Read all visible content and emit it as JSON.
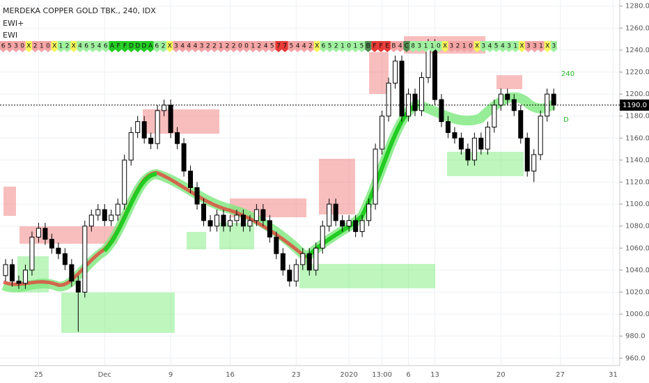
{
  "chart_data": {
    "type": "candlestick",
    "title": "MERDEKA COPPER GOLD TBK., 240, IDX",
    "indicators": [
      "EWI+",
      "EWI"
    ],
    "annotations": [
      "240",
      "D"
    ],
    "last_price": {
      "value": 1190,
      "label": "1190.0"
    },
    "ylim": [
      957,
      1283
    ],
    "yticks": [
      {
        "value": 960,
        "label": "960.0"
      },
      {
        "value": 980,
        "label": "980.0"
      },
      {
        "value": 1000,
        "label": "1000.0"
      },
      {
        "value": 1020,
        "label": "1020.0"
      },
      {
        "value": 1040,
        "label": "1040.0"
      },
      {
        "value": 1060,
        "label": "1060.0"
      },
      {
        "value": 1080,
        "label": "1080.0"
      },
      {
        "value": 1100,
        "label": "1100.0"
      },
      {
        "value": 1120,
        "label": "1120.0"
      },
      {
        "value": 1140,
        "label": "1140.0"
      },
      {
        "value": 1160,
        "label": "1160.0"
      },
      {
        "value": 1180,
        "label": "1180.0"
      },
      {
        "value": 1200,
        "label": "1200.0"
      },
      {
        "value": 1220,
        "label": "1220.0"
      },
      {
        "value": 1240,
        "label": "1240.0"
      },
      {
        "value": 1260,
        "label": "1260.0"
      },
      {
        "value": 1280,
        "label": "1280.0"
      }
    ],
    "grid": true,
    "up_color": "#ffffff",
    "down_color": "#000000",
    "edge_color": "#000000",
    "categories": [
      null,
      null,
      null,
      null,
      null,
      "25",
      null,
      null,
      null,
      null,
      null,
      null,
      null,
      null,
      null,
      "Dec",
      null,
      null,
      null,
      null,
      null,
      null,
      null,
      null,
      null,
      "9",
      null,
      null,
      null,
      null,
      null,
      null,
      null,
      null,
      "16",
      null,
      null,
      null,
      null,
      null,
      null,
      null,
      null,
      null,
      "23",
      null,
      null,
      null,
      null,
      null,
      null,
      null,
      "2020",
      null,
      null,
      null,
      null,
      "13:00",
      null,
      null,
      null,
      "6",
      null,
      null,
      null,
      "13",
      null,
      null,
      null,
      null,
      null,
      null,
      null,
      null,
      null,
      "20",
      null,
      null,
      null,
      null,
      null,
      null,
      null,
      null,
      "27",
      null,
      null,
      null,
      null,
      null,
      null,
      null,
      "31",
      null
    ],
    "candles": [
      [
        1035,
        1050,
        1030,
        1045
      ],
      [
        1045,
        1050,
        1025,
        1030
      ],
      [
        1030,
        1035,
        1023,
        1028
      ],
      [
        1028,
        1045,
        1023,
        1040
      ],
      [
        1040,
        1075,
        1035,
        1070
      ],
      [
        1070,
        1083,
        1065,
        1078
      ],
      [
        1078,
        1083,
        1063,
        1068
      ],
      [
        1068,
        1073,
        1055,
        1060
      ],
      [
        1060,
        1065,
        1050,
        1055
      ],
      [
        1055,
        1060,
        1040,
        1045
      ],
      [
        1045,
        1050,
        1025,
        1030
      ],
      [
        1030,
        1035,
        984,
        1020
      ],
      [
        1020,
        1085,
        1015,
        1080
      ],
      [
        1080,
        1095,
        1075,
        1090
      ],
      [
        1090,
        1100,
        1085,
        1095
      ],
      [
        1095,
        1100,
        1080,
        1085
      ],
      [
        1085,
        1095,
        1080,
        1090
      ],
      [
        1090,
        1105,
        1085,
        1100
      ],
      [
        1100,
        1145,
        1095,
        1140
      ],
      [
        1140,
        1170,
        1135,
        1165
      ],
      [
        1165,
        1180,
        1160,
        1175
      ],
      [
        1175,
        1180,
        1155,
        1160
      ],
      [
        1160,
        1165,
        1150,
        1155
      ],
      [
        1155,
        1190,
        1150,
        1185
      ],
      [
        1185,
        1195,
        1180,
        1190
      ],
      [
        1190,
        1195,
        1160,
        1165
      ],
      [
        1165,
        1170,
        1150,
        1155
      ],
      [
        1155,
        1160,
        1125,
        1130
      ],
      [
        1130,
        1135,
        1110,
        1115
      ],
      [
        1115,
        1120,
        1095,
        1100
      ],
      [
        1100,
        1105,
        1080,
        1085
      ],
      [
        1085,
        1090,
        1075,
        1080
      ],
      [
        1080,
        1095,
        1075,
        1090
      ],
      [
        1090,
        1095,
        1075,
        1080
      ],
      [
        1080,
        1090,
        1075,
        1085
      ],
      [
        1085,
        1095,
        1080,
        1090
      ],
      [
        1090,
        1095,
        1075,
        1080
      ],
      [
        1080,
        1090,
        1075,
        1085
      ],
      [
        1085,
        1100,
        1080,
        1095
      ],
      [
        1095,
        1100,
        1080,
        1085
      ],
      [
        1085,
        1090,
        1065,
        1070
      ],
      [
        1070,
        1075,
        1050,
        1055
      ],
      [
        1055,
        1060,
        1035,
        1040
      ],
      [
        1040,
        1045,
        1025,
        1030
      ],
      [
        1030,
        1050,
        1025,
        1045
      ],
      [
        1045,
        1060,
        1040,
        1055
      ],
      [
        1055,
        1060,
        1035,
        1040
      ],
      [
        1040,
        1065,
        1035,
        1060
      ],
      [
        1060,
        1085,
        1055,
        1080
      ],
      [
        1080,
        1105,
        1075,
        1100
      ],
      [
        1100,
        1105,
        1080,
        1085
      ],
      [
        1085,
        1090,
        1075,
        1080
      ],
      [
        1080,
        1090,
        1075,
        1085
      ],
      [
        1085,
        1090,
        1070,
        1075
      ],
      [
        1075,
        1090,
        1070,
        1085
      ],
      [
        1085,
        1105,
        1080,
        1100
      ],
      [
        1100,
        1155,
        1095,
        1150
      ],
      [
        1150,
        1185,
        1145,
        1180
      ],
      [
        1180,
        1215,
        1175,
        1210
      ],
      [
        1210,
        1235,
        1205,
        1230
      ],
      [
        1230,
        1235,
        1175,
        1180
      ],
      [
        1180,
        1205,
        1175,
        1200
      ],
      [
        1200,
        1205,
        1180,
        1185
      ],
      [
        1185,
        1220,
        1180,
        1215
      ],
      [
        1215,
        1250,
        1210,
        1245
      ],
      [
        1245,
        1250,
        1190,
        1195
      ],
      [
        1195,
        1200,
        1170,
        1175
      ],
      [
        1175,
        1180,
        1160,
        1165
      ],
      [
        1165,
        1170,
        1155,
        1160
      ],
      [
        1160,
        1165,
        1145,
        1150
      ],
      [
        1150,
        1155,
        1135,
        1140
      ],
      [
        1140,
        1165,
        1135,
        1160
      ],
      [
        1160,
        1165,
        1145,
        1150
      ],
      [
        1150,
        1175,
        1145,
        1170
      ],
      [
        1170,
        1195,
        1165,
        1190
      ],
      [
        1190,
        1205,
        1185,
        1200
      ],
      [
        1200,
        1205,
        1190,
        1195
      ],
      [
        1195,
        1200,
        1180,
        1185
      ],
      [
        1185,
        1190,
        1155,
        1160
      ],
      [
        1160,
        1165,
        1125,
        1130
      ],
      [
        1130,
        1150,
        1120,
        1145
      ],
      [
        1145,
        1185,
        1140,
        1180
      ],
      [
        1180,
        1205,
        1175,
        1200
      ],
      [
        1200,
        1205,
        1185,
        1190
      ],
      null,
      null,
      null,
      null,
      null,
      null,
      null,
      null,
      null,
      null
    ],
    "ewi_palette": {
      "r": "#f4a3a3",
      "R": "#e53935",
      "g": "#9ff09f",
      "G": "#22cc22",
      "y": "#f5f55a",
      "d": "#4f8a4f"
    },
    "ewi_cells": [
      [
        "6",
        "r"
      ],
      [
        "5",
        "r"
      ],
      [
        "3",
        "r"
      ],
      [
        "0",
        "r"
      ],
      [
        "X",
        "y"
      ],
      [
        "2",
        "r"
      ],
      [
        "1",
        "r"
      ],
      [
        "0",
        "r"
      ],
      [
        "X",
        "y"
      ],
      [
        "1",
        "g"
      ],
      [
        "2",
        "g"
      ],
      [
        "X",
        "y"
      ],
      [
        "4",
        "g"
      ],
      [
        "6",
        "g"
      ],
      [
        "5",
        "g"
      ],
      [
        "4",
        "g"
      ],
      [
        "6",
        "g"
      ],
      [
        "A",
        "G"
      ],
      [
        "F",
        "G"
      ],
      [
        "F",
        "G"
      ],
      [
        "D",
        "G"
      ],
      [
        "D",
        "G"
      ],
      [
        "D",
        "G"
      ],
      [
        "A",
        "G"
      ],
      [
        "6",
        "g"
      ],
      [
        "2",
        "g"
      ],
      [
        "X",
        "y"
      ],
      [
        "3",
        "r"
      ],
      [
        "4",
        "r"
      ],
      [
        "4",
        "r"
      ],
      [
        "4",
        "r"
      ],
      [
        "3",
        "r"
      ],
      [
        "2",
        "r"
      ],
      [
        "2",
        "r"
      ],
      [
        "1",
        "r"
      ],
      [
        "2",
        "r"
      ],
      [
        "2",
        "r"
      ],
      [
        "0",
        "r"
      ],
      [
        "0",
        "r"
      ],
      [
        "1",
        "r"
      ],
      [
        "2",
        "r"
      ],
      [
        "4",
        "r"
      ],
      [
        "5",
        "r"
      ],
      [
        "7",
        "R"
      ],
      [
        "7",
        "R"
      ],
      [
        "5",
        "r"
      ],
      [
        "4",
        "r"
      ],
      [
        "4",
        "r"
      ],
      [
        "2",
        "r"
      ],
      [
        "X",
        "y"
      ],
      [
        "6",
        "g"
      ],
      [
        "5",
        "g"
      ],
      [
        "2",
        "g"
      ],
      [
        "1",
        "g"
      ],
      [
        "0",
        "g"
      ],
      [
        "1",
        "g"
      ],
      [
        "5",
        "g"
      ],
      [
        "B",
        "d"
      ],
      [
        "F",
        "R"
      ],
      [
        "F",
        "R"
      ],
      [
        "E",
        "R"
      ],
      [
        "B",
        "r"
      ],
      [
        "4",
        "r"
      ],
      [
        "C",
        "d"
      ],
      [
        "8",
        "g"
      ],
      [
        "3",
        "g"
      ],
      [
        "1",
        "g"
      ],
      [
        "1",
        "g"
      ],
      [
        "0",
        "g"
      ],
      [
        "X",
        "y"
      ],
      [
        "3",
        "r"
      ],
      [
        "2",
        "r"
      ],
      [
        "1",
        "r"
      ],
      [
        "0",
        "r"
      ],
      [
        "X",
        "y"
      ],
      [
        "3",
        "g"
      ],
      [
        "4",
        "g"
      ],
      [
        "5",
        "g"
      ],
      [
        "4",
        "g"
      ],
      [
        "3",
        "g"
      ],
      [
        "1",
        "g"
      ],
      [
        "X",
        "y"
      ],
      [
        "3",
        "r"
      ],
      [
        "3",
        "r"
      ],
      [
        "1",
        "r"
      ],
      [
        "X",
        "y"
      ],
      [
        "3",
        "g"
      ]
    ]
  }
}
